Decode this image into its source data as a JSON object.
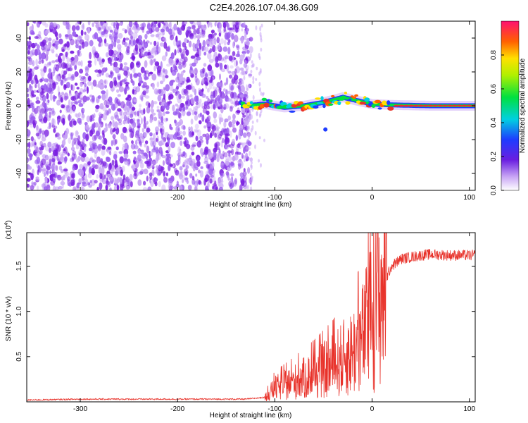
{
  "figure_title": "C2E4.2026.107.04.36.G09",
  "colors": {
    "snr_line": "#e8322a",
    "noise_dark": "#7a1ee0",
    "noise_light": "#c9a6f5",
    "signal_core": "#e8322a",
    "axis": "#000000"
  },
  "chart_data": [
    {
      "type": "heatmap",
      "title": "",
      "xlabel": "Height of straight line (km)",
      "ylabel": "Frequency (Hz)",
      "xlim": [
        -355,
        106
      ],
      "ylim": [
        -50,
        50
      ],
      "xticks": [
        -300,
        -200,
        -100,
        0,
        100
      ],
      "yticks": [
        -40,
        -20,
        0,
        20,
        40
      ],
      "colorbar": {
        "label": "Normalized spectral amplitude",
        "range": [
          0,
          1
        ],
        "ticks": [
          0.0,
          0.2,
          0.4,
          0.6,
          0.8
        ]
      },
      "noise_region_x": [
        -355,
        -135
      ],
      "signal_center_track": [
        {
          "x": -130,
          "y": 0
        },
        {
          "x": -110,
          "y": 1
        },
        {
          "x": -90,
          "y": -1
        },
        {
          "x": -70,
          "y": 0
        },
        {
          "x": -50,
          "y": 2
        },
        {
          "x": -30,
          "y": 5
        },
        {
          "x": -15,
          "y": 3
        },
        {
          "x": 0,
          "y": 1
        },
        {
          "x": 20,
          "y": 0.5
        },
        {
          "x": 60,
          "y": 0
        },
        {
          "x": 106,
          "y": 0
        }
      ]
    },
    {
      "type": "line",
      "title": "",
      "xlabel": "Height of straight line (km)",
      "ylabel": "SNR (10 * v/v)",
      "y_multiplier": "(x10",
      "y_multiplier_exp": "4",
      "y_multiplier_close": ")",
      "xlim": [
        -355,
        106
      ],
      "ylim": [
        0,
        1.87
      ],
      "xticks": [
        -300,
        -200,
        -100,
        0,
        100
      ],
      "yticks": [
        0.5,
        1.0,
        1.5
      ],
      "ytick_labels": [
        "0.5",
        "1.0",
        "1.5"
      ],
      "series": [
        {
          "name": "SNR",
          "x": [
            -355,
            -300,
            -200,
            -130,
            -110,
            -100,
            -80,
            -60,
            -40,
            -20,
            -10,
            0,
            10,
            20,
            30,
            50,
            60,
            80,
            106
          ],
          "y": [
            0.02,
            0.03,
            0.03,
            0.03,
            0.05,
            0.15,
            0.22,
            0.3,
            0.4,
            0.55,
            0.7,
            0.95,
            1.25,
            1.5,
            1.58,
            1.62,
            1.63,
            1.62,
            1.62
          ]
        }
      ]
    }
  ]
}
